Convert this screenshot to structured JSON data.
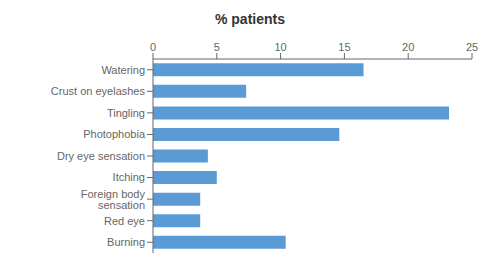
{
  "chart_data": {
    "type": "bar",
    "orientation": "horizontal",
    "title": "% patients",
    "categories": [
      "Burning",
      "Red eye",
      "Foreign body sensation",
      "Itching",
      "Dry eye sensation",
      "Photophobia",
      "Tingling",
      "Crust on eyelashes",
      "Watering"
    ],
    "values": [
      10.4,
      3.7,
      3.7,
      5.0,
      4.3,
      14.6,
      23.2,
      7.3,
      16.5
    ],
    "color": "#5b9bd5",
    "xlim": [
      0,
      25
    ],
    "xticks": [
      0,
      5,
      10,
      15,
      20,
      25
    ],
    "grid": false
  }
}
